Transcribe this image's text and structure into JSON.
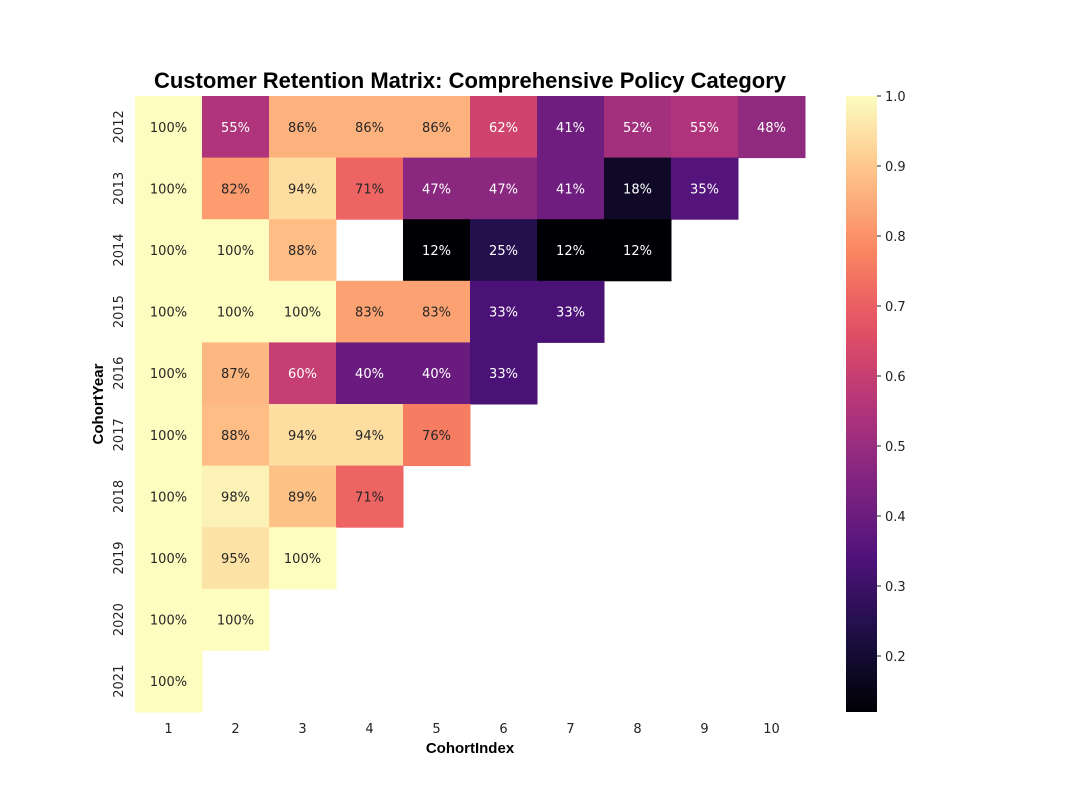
{
  "chart_data": {
    "type": "heatmap",
    "title": "Customer Retention Matrix: Comprehensive Policy Category",
    "xlabel": "CohortIndex",
    "ylabel": "CohortYear",
    "x_categories": [
      "1",
      "2",
      "3",
      "4",
      "5",
      "6",
      "7",
      "8",
      "9",
      "10"
    ],
    "y_categories": [
      "2012",
      "2013",
      "2014",
      "2015",
      "2016",
      "2017",
      "2018",
      "2019",
      "2020",
      "2021"
    ],
    "values": [
      [
        1.0,
        0.55,
        0.86,
        0.86,
        0.86,
        0.62,
        0.41,
        0.52,
        0.55,
        0.48
      ],
      [
        1.0,
        0.82,
        0.94,
        0.71,
        0.47,
        0.47,
        0.41,
        0.18,
        0.35,
        null
      ],
      [
        1.0,
        1.0,
        0.88,
        null,
        0.12,
        0.25,
        0.12,
        0.12,
        null,
        null
      ],
      [
        1.0,
        1.0,
        1.0,
        0.83,
        0.83,
        0.33,
        0.33,
        null,
        null,
        null
      ],
      [
        1.0,
        0.87,
        0.6,
        0.4,
        0.4,
        0.33,
        null,
        null,
        null,
        null
      ],
      [
        1.0,
        0.88,
        0.94,
        0.94,
        0.76,
        null,
        null,
        null,
        null,
        null
      ],
      [
        1.0,
        0.98,
        0.89,
        0.71,
        null,
        null,
        null,
        null,
        null,
        null
      ],
      [
        1.0,
        0.95,
        1.0,
        null,
        null,
        null,
        null,
        null,
        null,
        null
      ],
      [
        1.0,
        1.0,
        null,
        null,
        null,
        null,
        null,
        null,
        null,
        null
      ],
      [
        1.0,
        null,
        null,
        null,
        null,
        null,
        null,
        null,
        null,
        null
      ]
    ],
    "labels": [
      [
        "100%",
        "55%",
        "86%",
        "86%",
        "86%",
        "62%",
        "41%",
        "52%",
        "55%",
        "48%"
      ],
      [
        "100%",
        "82%",
        "94%",
        "71%",
        "47%",
        "47%",
        "41%",
        "18%",
        "35%",
        ""
      ],
      [
        "100%",
        "100%",
        "88%",
        "",
        "12%",
        "25%",
        "12%",
        "12%",
        "",
        ""
      ],
      [
        "100%",
        "100%",
        "100%",
        "83%",
        "83%",
        "33%",
        "33%",
        "",
        "",
        ""
      ],
      [
        "100%",
        "87%",
        "60%",
        "40%",
        "40%",
        "33%",
        "",
        "",
        "",
        ""
      ],
      [
        "100%",
        "88%",
        "94%",
        "94%",
        "76%",
        "",
        "",
        "",
        "",
        ""
      ],
      [
        "100%",
        "98%",
        "89%",
        "71%",
        "",
        "",
        "",
        "",
        "",
        ""
      ],
      [
        "100%",
        "95%",
        "100%",
        "",
        "",
        "",
        "",
        "",
        "",
        ""
      ],
      [
        "100%",
        "100%",
        "",
        "",
        "",
        "",
        "",
        "",
        "",
        ""
      ],
      [
        "100%",
        "",
        "",
        "",
        "",
        "",
        "",
        "",
        "",
        ""
      ]
    ],
    "colormap": "magma",
    "vmin": 0.12,
    "vmax": 1.0,
    "colorbar_ticks": [
      "0.2",
      "0.3",
      "0.4",
      "0.5",
      "0.6",
      "0.7",
      "0.8",
      "0.9",
      "1.0"
    ],
    "grid": false
  }
}
